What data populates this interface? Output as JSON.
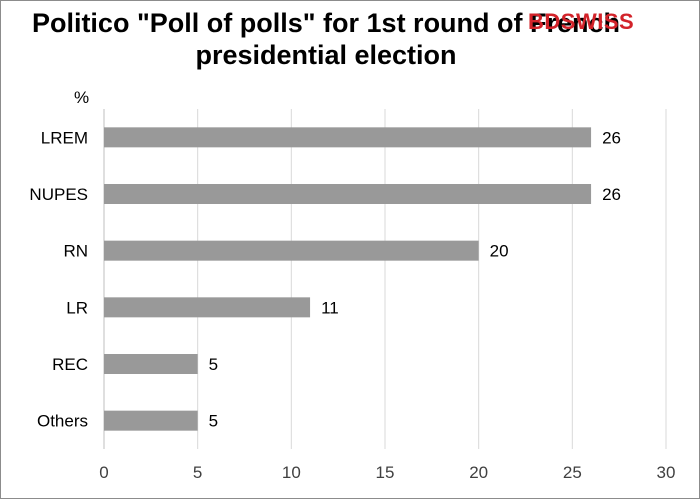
{
  "title": "Politico \"Poll of polls\" for 1st round of French presidential election",
  "logo": {
    "text": "BDSWISS",
    "bd": "BD",
    "swiss": "SWISS"
  },
  "colors": {
    "bar": "#999999",
    "grid": "#d9d9d9",
    "axis": "#bfbfbf",
    "text": "#404040",
    "logo": "#d2232a"
  },
  "chart_data": {
    "type": "bar",
    "orientation": "horizontal",
    "title": "Politico \"Poll of polls\" for 1st round of French presidential election",
    "ylabel": "%",
    "categories": [
      "LREM",
      "NUPES",
      "RN",
      "LR",
      "REC",
      "Others"
    ],
    "values": [
      26,
      26,
      20,
      11,
      5,
      5
    ],
    "data_labels": [
      "26",
      "26",
      "20",
      "11",
      "5",
      "5"
    ],
    "xlim": [
      0,
      30
    ],
    "xticks": [
      0,
      5,
      10,
      15,
      20,
      25,
      30
    ],
    "grid": true,
    "legend": "none"
  }
}
